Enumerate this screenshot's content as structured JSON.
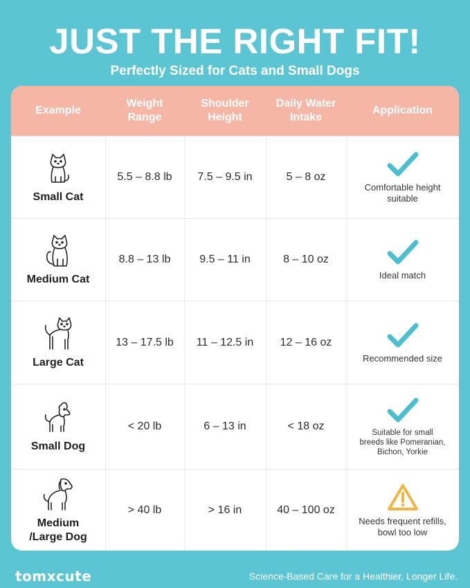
{
  "title": "JUST THE RIGHT FIT!",
  "subtitle": "Perfectly Sized for Cats and Small Dogs",
  "headers": {
    "example": "Example",
    "weight": [
      "Weight",
      "Range"
    ],
    "shoulder": [
      "Shoulder",
      "Height"
    ],
    "water": [
      "Daily Water",
      "Intake"
    ],
    "application": "Application"
  },
  "rows": [
    {
      "pet": "Small Cat",
      "icon": "small-cat-icon",
      "weight": "5.5 – 8.8 lb",
      "shoulder": "7.5 – 9.5 in",
      "water": "5 – 8 oz",
      "status": "check",
      "app_lines": [
        "Comfortable height",
        "suitable"
      ]
    },
    {
      "pet": "Medium Cat",
      "icon": "medium-cat-icon",
      "weight": "8.8 – 13 lb",
      "shoulder": "9.5 – 11 in",
      "water": "8 – 10 oz",
      "status": "check",
      "app_lines": [
        "Ideal match"
      ]
    },
    {
      "pet": "Large Cat",
      "icon": "large-cat-icon",
      "weight": "13 – 17.5 lb",
      "shoulder": "11 – 12.5 in",
      "water": "12 – 16 oz",
      "status": "check",
      "app_lines": [
        "Recommended size"
      ]
    },
    {
      "pet": "Small Dog",
      "icon": "small-dog-icon",
      "weight": "< 20 lb",
      "shoulder": "6 – 13 in",
      "water": "< 18 oz",
      "status": "check",
      "app_lines": [
        "Suitable for small",
        "breeds like Pomeranian,",
        "Bichon, Yorkie"
      ]
    },
    {
      "pet_lines": [
        "Medium",
        "/Large Dog"
      ],
      "icon": "large-dog-icon",
      "weight": "> 40 lb",
      "shoulder": "> 16 in",
      "water": "40 – 100 oz",
      "status": "warning",
      "app_lines": [
        "Needs frequent refills,",
        "bowl too low"
      ]
    }
  ],
  "colors": {
    "background": "#5cc5d4",
    "header": "#f6b6a6",
    "check": "#4bbfd0",
    "warning": "#f2b544"
  },
  "footer": {
    "logo": "tomxcute",
    "tagline": "Science-Based Care for a Healthier, Longer Life."
  }
}
